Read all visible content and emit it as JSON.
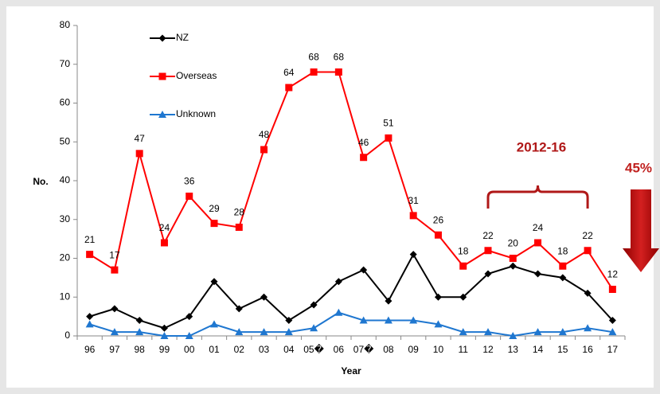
{
  "chart_data": {
    "type": "line",
    "categories": [
      "96",
      "97",
      "98",
      "99",
      "00",
      "01",
      "02",
      "03",
      "04",
      "05�",
      "06",
      "07�",
      "08",
      "09",
      "10",
      "11",
      "12",
      "13",
      "14",
      "15",
      "16",
      "17"
    ],
    "series": [
      {
        "name": "NZ",
        "color": "#000000",
        "marker": "diamond",
        "values": [
          5,
          7,
          4,
          2,
          5,
          14,
          7,
          10,
          4,
          8,
          14,
          17,
          9,
          21,
          10,
          10,
          16,
          18,
          16,
          15,
          11,
          4
        ]
      },
      {
        "name": "Overseas",
        "color": "#ff0000",
        "marker": "square",
        "values": [
          21,
          17,
          47,
          24,
          36,
          29,
          28,
          48,
          64,
          68,
          68,
          46,
          51,
          31,
          26,
          18,
          22,
          20,
          24,
          18,
          22,
          12
        ],
        "data_labels": true
      },
      {
        "name": "Unknown",
        "color": "#1f77d0",
        "marker": "triangle",
        "values": [
          3,
          1,
          1,
          0,
          0,
          3,
          1,
          1,
          1,
          2,
          6,
          4,
          4,
          4,
          3,
          1,
          1,
          0,
          1,
          1,
          2,
          1
        ]
      }
    ],
    "ylim": [
      0,
      80
    ],
    "yticks": [
      0,
      10,
      20,
      30,
      40,
      50,
      60,
      70,
      80
    ],
    "xlabel": "Year",
    "ylabel": "No.",
    "annotations": [
      "2012-16",
      "45%"
    ]
  }
}
